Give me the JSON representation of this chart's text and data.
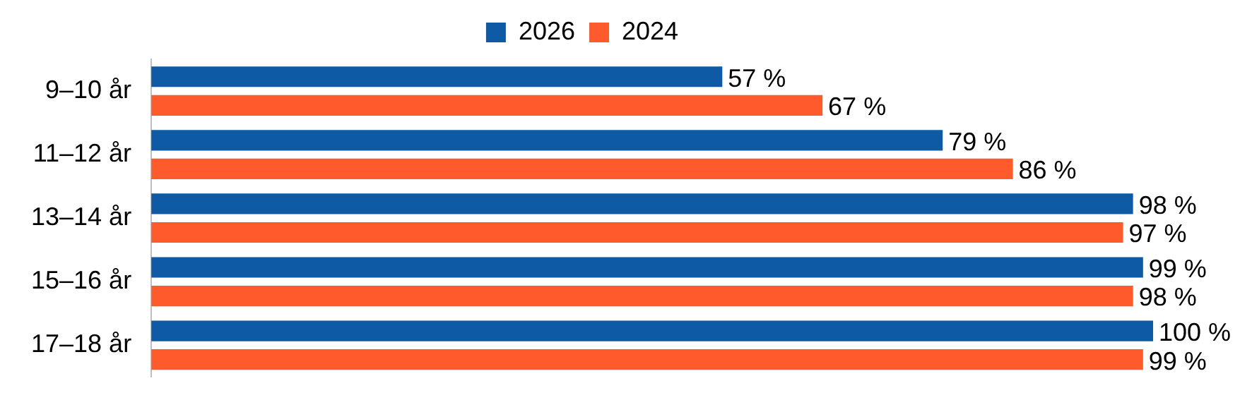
{
  "chart_data": {
    "type": "bar",
    "orientation": "horizontal",
    "categories": [
      "9–10 år",
      "11–12 år",
      "13–14 år",
      "15–16 år",
      "17–18 år"
    ],
    "xlim": [
      0,
      100
    ],
    "legend": "top",
    "tick_labels": "y",
    "series": [
      {
        "name": "2026",
        "color": "#0f5aa5",
        "values": [
          57,
          79,
          98,
          99,
          100
        ],
        "value_labels": [
          "57 %",
          "79 %",
          "98 %",
          "99 %",
          "100 %"
        ]
      },
      {
        "name": "2024",
        "color": "#ff5a2b",
        "values": [
          67,
          86,
          97,
          98,
          99
        ],
        "value_labels": [
          "67 %",
          "86 %",
          "97 %",
          "98 %",
          "99 %"
        ]
      }
    ]
  }
}
